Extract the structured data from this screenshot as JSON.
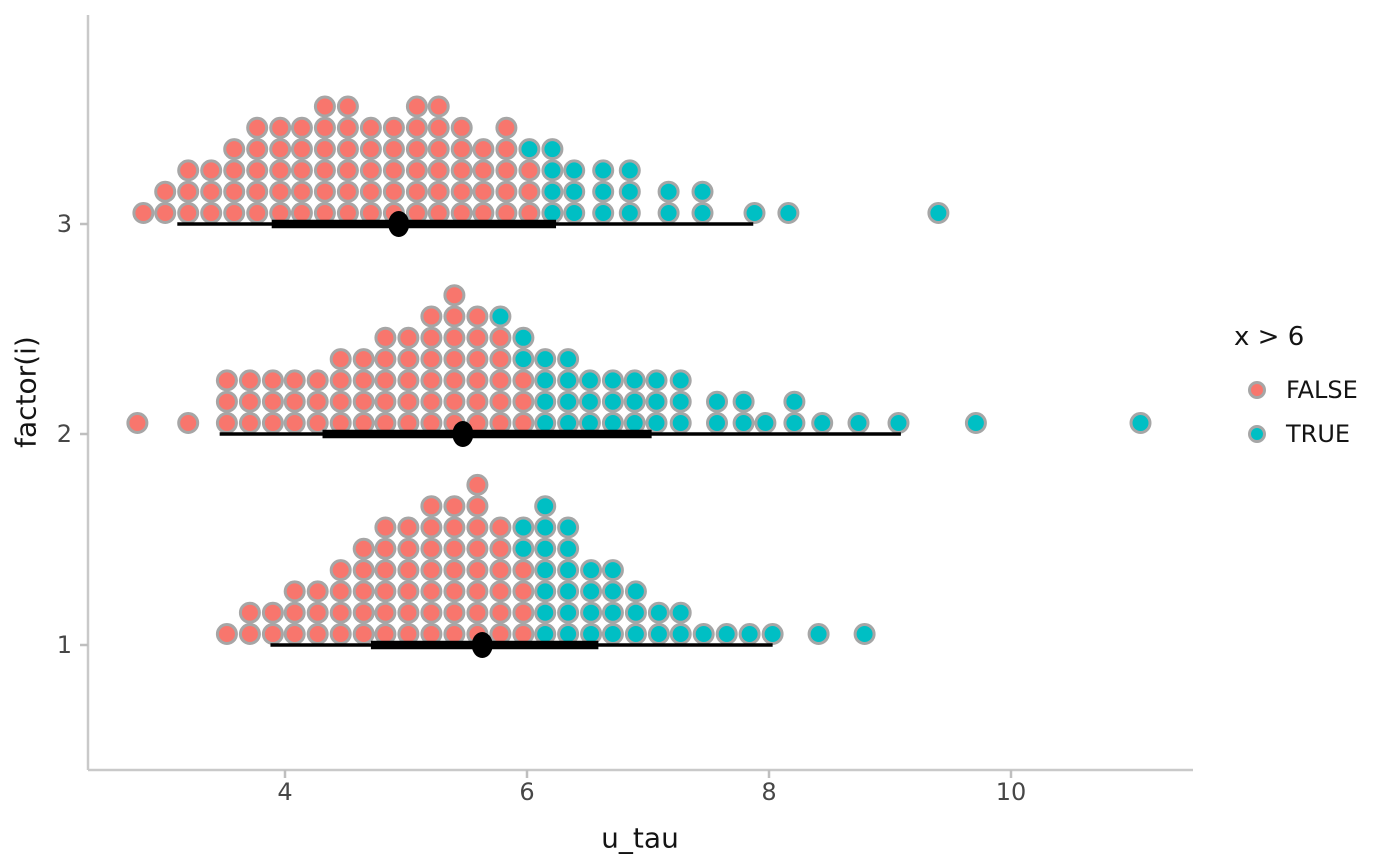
{
  "chart_data": {
    "type": "dotplot-interval",
    "title": "",
    "xlabel": "u_tau",
    "ylabel": "factor(i)",
    "x_ticks": [
      "4",
      "6",
      "8",
      "10"
    ],
    "x_tick_values": [
      4,
      6,
      8,
      10
    ],
    "x_range": [
      2.4,
      11.5
    ],
    "y_categories": [
      "3",
      "2",
      "1"
    ],
    "grid": "off",
    "color_by": "x > 6",
    "color_threshold": 6,
    "legend": {
      "title": "x > 6",
      "position": "right",
      "entries": [
        {
          "label": "FALSE",
          "color": "#F8766D"
        },
        {
          "label": "TRUE",
          "color": "#00BFC4"
        }
      ]
    },
    "colors": {
      "false_fill": "#F8766D",
      "true_fill": "#00BFC4",
      "dot_ring": "#A6A6A6",
      "interval": "#000000",
      "axis_line": "#C9C9C9",
      "tick_mark": "#BFBFBF",
      "tick_text": "#474747",
      "title_text": "#141414"
    },
    "rows": [
      {
        "y": "3",
        "interval": {
          "outer": [
            3.11,
            7.87
          ],
          "inner": [
            3.89,
            6.24
          ],
          "point": 4.94
        },
        "stacks": [
          [
            2.83,
            1,
            0
          ],
          [
            3.01,
            2,
            0
          ],
          [
            3.2,
            3,
            0
          ],
          [
            3.39,
            3,
            0
          ],
          [
            3.58,
            4,
            0
          ],
          [
            3.77,
            5,
            0
          ],
          [
            3.96,
            5,
            0
          ],
          [
            4.14,
            5,
            0
          ],
          [
            4.33,
            6,
            0
          ],
          [
            4.52,
            6,
            0
          ],
          [
            4.71,
            5,
            0
          ],
          [
            4.9,
            5,
            0
          ],
          [
            5.09,
            6,
            0
          ],
          [
            5.27,
            6,
            0
          ],
          [
            5.46,
            5,
            0
          ],
          [
            5.64,
            4,
            0
          ],
          [
            5.83,
            5,
            0
          ],
          [
            6.02,
            4,
            1
          ],
          [
            6.21,
            4,
            4
          ],
          [
            6.39,
            3,
            3
          ],
          [
            6.63,
            3,
            3
          ],
          [
            6.85,
            3,
            3
          ],
          [
            7.17,
            2,
            2
          ],
          [
            7.45,
            2,
            2
          ],
          [
            7.88,
            1,
            1
          ],
          [
            8.16,
            1,
            1
          ],
          [
            9.4,
            1,
            1
          ]
        ]
      },
      {
        "y": "2",
        "interval": {
          "outer": [
            3.46,
            9.09
          ],
          "inner": [
            4.31,
            7.03
          ],
          "point": 5.47
        },
        "stacks": [
          [
            2.78,
            1,
            0
          ],
          [
            3.2,
            1,
            0
          ],
          [
            3.52,
            3,
            0
          ],
          [
            3.71,
            3,
            0
          ],
          [
            3.9,
            3,
            0
          ],
          [
            4.08,
            3,
            0
          ],
          [
            4.27,
            3,
            0
          ],
          [
            4.46,
            4,
            0
          ],
          [
            4.65,
            4,
            0
          ],
          [
            4.83,
            5,
            0
          ],
          [
            5.02,
            5,
            0
          ],
          [
            5.21,
            6,
            0
          ],
          [
            5.4,
            7,
            0
          ],
          [
            5.59,
            6,
            0
          ],
          [
            5.78,
            6,
            1
          ],
          [
            5.97,
            5,
            2
          ],
          [
            6.15,
            4,
            4
          ],
          [
            6.34,
            4,
            4
          ],
          [
            6.52,
            3,
            3
          ],
          [
            6.71,
            3,
            3
          ],
          [
            6.89,
            3,
            3
          ],
          [
            7.07,
            3,
            3
          ],
          [
            7.27,
            3,
            3
          ],
          [
            7.57,
            2,
            2
          ],
          [
            7.79,
            2,
            2
          ],
          [
            7.97,
            1,
            1
          ],
          [
            8.21,
            2,
            2
          ],
          [
            8.44,
            1,
            1
          ],
          [
            8.74,
            1,
            1
          ],
          [
            9.07,
            1,
            1
          ],
          [
            9.71,
            1,
            1
          ],
          [
            11.07,
            1,
            1
          ]
        ]
      },
      {
        "y": "1",
        "interval": {
          "outer": [
            3.88,
            8.03
          ],
          "inner": [
            4.71,
            6.59
          ],
          "point": 5.63
        },
        "stacks": [
          [
            3.52,
            1,
            0
          ],
          [
            3.71,
            2,
            0
          ],
          [
            3.9,
            2,
            0
          ],
          [
            4.08,
            3,
            0
          ],
          [
            4.27,
            3,
            0
          ],
          [
            4.46,
            4,
            0
          ],
          [
            4.65,
            5,
            0
          ],
          [
            4.83,
            6,
            0
          ],
          [
            5.02,
            6,
            0
          ],
          [
            5.21,
            7,
            0
          ],
          [
            5.4,
            7,
            0
          ],
          [
            5.59,
            8,
            0
          ],
          [
            5.78,
            6,
            0
          ],
          [
            5.97,
            6,
            2
          ],
          [
            6.15,
            7,
            7
          ],
          [
            6.34,
            6,
            6
          ],
          [
            6.53,
            4,
            4
          ],
          [
            6.71,
            4,
            4
          ],
          [
            6.9,
            3,
            3
          ],
          [
            7.09,
            2,
            2
          ],
          [
            7.27,
            2,
            2
          ],
          [
            7.46,
            1,
            1
          ],
          [
            7.65,
            1,
            1
          ],
          [
            7.84,
            1,
            1
          ],
          [
            8.03,
            1,
            1
          ],
          [
            8.41,
            1,
            1
          ],
          [
            8.79,
            1,
            1
          ]
        ]
      }
    ]
  }
}
